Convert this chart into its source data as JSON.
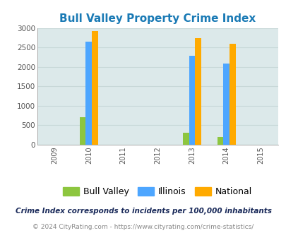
{
  "title": "Bull Valley Property Crime Index",
  "years": [
    2009,
    2010,
    2011,
    2012,
    2013,
    2014,
    2015
  ],
  "data_years": [
    2010,
    2013,
    2014
  ],
  "bull_valley": [
    700,
    300,
    200
  ],
  "illinois": [
    2650,
    2280,
    2090
  ],
  "national": [
    2920,
    2740,
    2600
  ],
  "bull_valley_color": "#8dc63f",
  "illinois_color": "#4da6ff",
  "national_color": "#ffaa00",
  "bg_color": "#dce9ea",
  "fig_bg": "#ffffff",
  "ylim": [
    0,
    3000
  ],
  "yticks": [
    0,
    500,
    1000,
    1500,
    2000,
    2500,
    3000
  ],
  "bar_width": 0.18,
  "footnote1": "Crime Index corresponds to incidents per 100,000 inhabitants",
  "footnote2": "© 2024 CityRating.com - https://www.cityrating.com/crime-statistics/",
  "legend_labels": [
    "Bull Valley",
    "Illinois",
    "National"
  ],
  "title_fontsize": 11,
  "tick_fontsize": 7,
  "ytick_fontsize": 7.5,
  "legend_fontsize": 9,
  "footnote1_fontsize": 7.5,
  "footnote2_fontsize": 6.5,
  "title_color": "#1a7ab5",
  "footnote1_color": "#1a2a5a",
  "footnote2_color": "#888888",
  "grid_color": "#c8d8d8"
}
